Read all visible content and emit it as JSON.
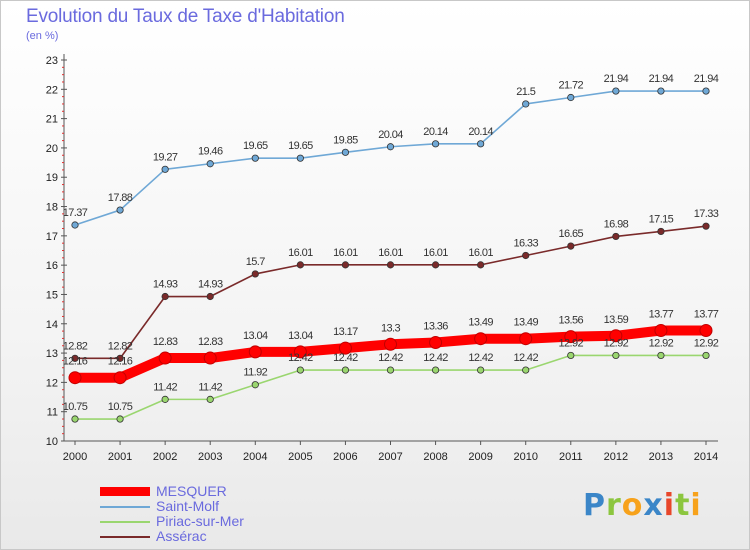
{
  "chart_data": {
    "type": "line",
    "title": "Evolution du Taux de Taxe d'Habitation",
    "subtitle": "(en %)",
    "xlabel": "",
    "ylabel": "",
    "x": [
      "2000",
      "2001",
      "2002",
      "2003",
      "2004",
      "2005",
      "2006",
      "2007",
      "2008",
      "2009",
      "2010",
      "2011",
      "2012",
      "2013",
      "2014"
    ],
    "ylim": [
      10,
      23
    ],
    "yticks": [
      "10",
      "11",
      "12",
      "13",
      "14",
      "15",
      "16",
      "17",
      "18",
      "19",
      "20",
      "21",
      "22",
      "23"
    ],
    "grid": false,
    "legend_position": "bottom-left",
    "series": [
      {
        "name": "MESQUER",
        "color": "#ff0000",
        "values": [
          12.16,
          12.16,
          12.83,
          12.83,
          13.04,
          13.04,
          13.17,
          13.3,
          13.36,
          13.49,
          13.49,
          13.56,
          13.59,
          13.77,
          13.77
        ],
        "labels": [
          "12.16",
          "12.16",
          "12.83",
          "12.83",
          "13.04",
          "13.04",
          "13.17",
          "13.3",
          "13.36",
          "13.49",
          "13.49",
          "13.56",
          "13.59",
          "13.77",
          "13.77"
        ]
      },
      {
        "name": "Saint-Molf",
        "color": "#6fa8d6",
        "values": [
          17.37,
          17.88,
          19.27,
          19.46,
          19.65,
          19.65,
          19.85,
          20.04,
          20.14,
          20.14,
          21.5,
          21.72,
          21.94,
          21.94,
          21.94
        ],
        "labels": [
          "17.37",
          "17.88",
          "19.27",
          "19.46",
          "19.65",
          "19.65",
          "19.85",
          "20.04",
          "20.14",
          "20.14",
          "21.5",
          "21.72",
          "21.94",
          "21.94",
          "21.94"
        ]
      },
      {
        "name": "Piriac-sur-Mer",
        "color": "#9ad66f",
        "values": [
          10.75,
          10.75,
          11.42,
          11.42,
          11.92,
          12.42,
          12.42,
          12.42,
          12.42,
          12.42,
          12.42,
          12.92,
          12.92,
          12.92,
          12.92
        ],
        "labels": [
          "10.75",
          "10.75",
          "11.42",
          "11.42",
          "11.92",
          "12.42",
          "12.42",
          "12.42",
          "12.42",
          "12.42",
          "12.42",
          "12.92",
          "12.92",
          "12.92",
          "12.92"
        ]
      },
      {
        "name": "Assérac",
        "color": "#7a2a2a",
        "values": [
          12.82,
          12.82,
          14.93,
          14.93,
          15.7,
          16.01,
          16.01,
          16.01,
          16.01,
          16.01,
          16.33,
          16.65,
          16.98,
          17.15,
          17.33
        ],
        "labels": [
          "12.82",
          "12.82",
          "14.93",
          "14.93",
          "15.7",
          "16.01",
          "16.01",
          "16.01",
          "16.01",
          "16.01",
          "16.33",
          "16.65",
          "16.98",
          "17.15",
          "17.33"
        ]
      }
    ]
  },
  "logo": {
    "letters": [
      {
        "ch": "P",
        "color": "#3b86c8"
      },
      {
        "ch": "r",
        "color": "#8cc63f"
      },
      {
        "ch": "o",
        "color": "#f7a21b"
      },
      {
        "ch": "x",
        "color": "#3b86c8"
      },
      {
        "ch": "i",
        "color": "#e8462a"
      },
      {
        "ch": "t",
        "color": "#8cc63f"
      },
      {
        "ch": "i",
        "color": "#f7a21b"
      }
    ]
  }
}
